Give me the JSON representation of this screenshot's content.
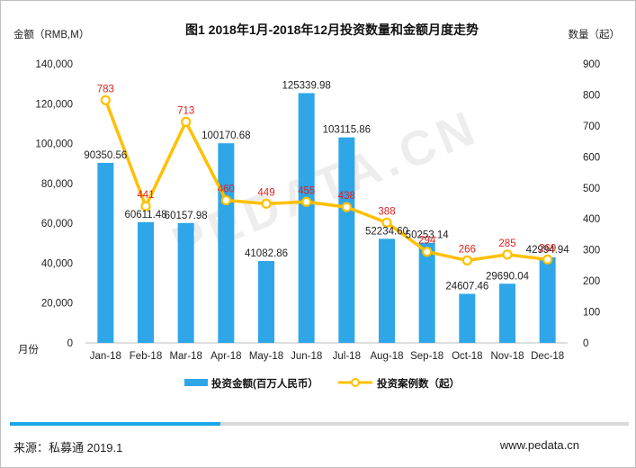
{
  "chart_data": {
    "type": "bar",
    "title": "图1 2018年1月-2018年12月投资数量和金额月度走势",
    "ylabel_left": "金额（RMB,M）",
    "ylabel_right": "数量（起）",
    "xlabel": "月份",
    "categories": [
      "Jan-18",
      "Feb-18",
      "Mar-18",
      "Apr-18",
      "May-18",
      "Jun-18",
      "Jul-18",
      "Aug-18",
      "Sep-18",
      "Oct-18",
      "Nov-18",
      "Dec-18"
    ],
    "ylim_left": [
      0,
      140000
    ],
    "ylim_right": [
      0,
      900
    ],
    "yticks_left": [
      "0",
      "20,000",
      "40,000",
      "60,000",
      "80,000",
      "100,000",
      "120,000",
      "140,000"
    ],
    "yticks_right": [
      "0",
      "100",
      "200",
      "300",
      "400",
      "500",
      "600",
      "700",
      "800",
      "900"
    ],
    "grid": false,
    "legend_position": "bottom",
    "series": [
      {
        "name": "投资金额(百万人民币）",
        "type": "bar",
        "axis": "left",
        "color": "#2ea6e8",
        "values": [
          90350.56,
          60611.48,
          60157.98,
          100170.68,
          41082.86,
          125339.98,
          103115.86,
          52234.6,
          50253.14,
          24607.46,
          29690.04,
          42994.94
        ],
        "labels": [
          "90350.56",
          "60611.48",
          "60157.98",
          "100170.68",
          "41082.86",
          "125339.98",
          "103115.86",
          "52234.60",
          "50253.14",
          "24607.46",
          "29690.04",
          "42994.94"
        ]
      },
      {
        "name": "投资案例数（起）",
        "type": "line",
        "axis": "right",
        "color": "#ffc000",
        "label_color": "#e02020",
        "values": [
          783,
          441,
          713,
          460,
          449,
          455,
          438,
          388,
          294,
          266,
          285,
          269
        ]
      }
    ]
  },
  "watermark": "PEDATA.CN",
  "footer": {
    "source": "来源：私募通 2019.1",
    "url": "www.pedata.cn",
    "progress_fraction": 0.34
  }
}
